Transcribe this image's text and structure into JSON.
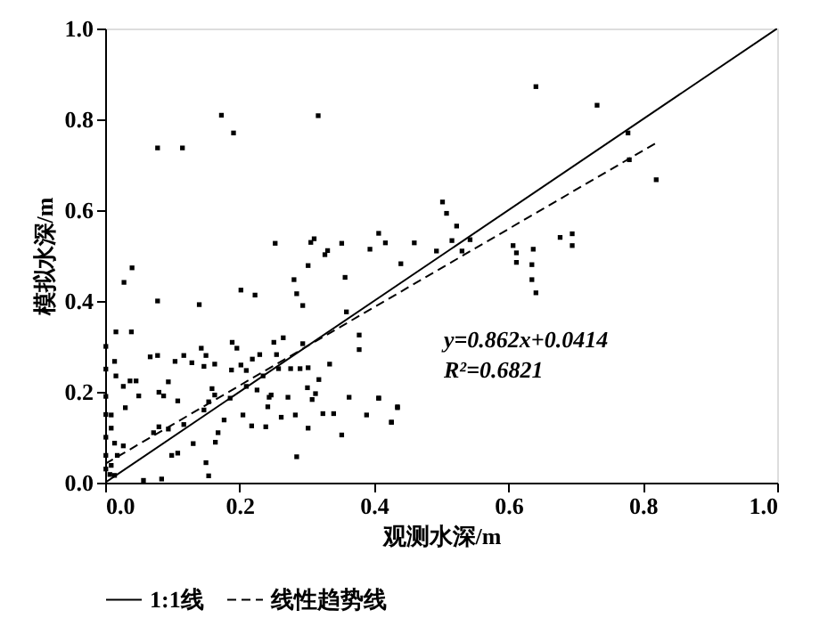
{
  "chart_data": {
    "type": "scatter",
    "xlabel": "观测水深/m",
    "ylabel": "模拟水深/m",
    "xlim": [
      0,
      1
    ],
    "ylim": [
      0,
      1
    ],
    "xticks": [
      {
        "value": 0,
        "label": "0.0"
      },
      0.2,
      0.4,
      0.6,
      0.8,
      {
        "value": 1,
        "label": "1.0"
      }
    ],
    "yticks": [
      {
        "value": 0,
        "label": "0.0"
      },
      0.2,
      0.4,
      0.6,
      0.8,
      {
        "value": 1,
        "label": "1.0"
      }
    ],
    "grid": false,
    "legend": "bottom",
    "annotations": [
      "y=0.862x+0.0414",
      "R²=0.6821"
    ],
    "series": [
      {
        "color": "#000000",
        "marker": "square",
        "x": [
          0.078,
          0.115,
          0.173,
          0.191,
          0.317,
          0.641,
          0.732,
          0.778,
          0.78,
          0.82,
          0.253,
          0.306,
          0.311,
          0.327,
          0.331,
          0.352,
          0.394,
          0.407,
          0.417,
          0.46,
          0.493,
          0.502,
          0.508,
          0.516,
          0.523,
          0.531,
          0.543,
          0.607,
          0.612,
          0.637,
          0.677,
          0.695,
          0.695,
          0.44,
          0.612,
          0.635,
          0.635,
          0.641,
          0.407,
          0.435,
          0.426,
          0.04,
          0.028,
          0.078,
          0.14,
          0.202,
          0.223,
          0.281,
          0.285,
          0.302,
          0.294,
          0.357,
          0.359,
          0.378,
          0.378,
          0.016,
          0.039,
          0.014,
          0.016,
          0.027,
          0.037,
          0.046,
          0.05,
          0.03,
          0.009,
          0.009,
          0.014,
          0.018,
          0.009,
          0.007,
          0.014,
          0.027,
          0.057,
          0.084,
          0.067,
          0.078,
          0.08,
          0.087,
          0.108,
          0.094,
          0.104,
          0.117,
          0.129,
          0.143,
          0.15,
          0.163,
          0.147,
          0.08,
          0.072,
          0.094,
          0.099,
          0.108,
          0.117,
          0.131,
          0.15,
          0.154,
          0.147,
          0.154,
          0.159,
          0.163,
          0.168,
          0.164,
          0.177,
          0.186,
          0.188,
          0.189,
          0.196,
          0.202,
          0.205,
          0.21,
          0.218,
          0.226,
          0.219,
          0.23,
          0.235,
          0.239,
          0.247,
          0.255,
          0.258,
          0.265,
          0.251,
          0.244,
          0.242,
          0.262,
          0.272,
          0.285,
          0.276,
          0.29,
          0.302,
          0.294,
          0.301,
          0.308,
          0.313,
          0.318,
          0.324,
          0.302,
          0.283,
          0.334,
          0.34,
          0.352,
          0.363,
          0.389,
          0.407,
          0.435,
          0.426,
          0.21,
          0.001,
          0.001,
          0.001,
          0.001,
          0.001,
          0.001,
          0.001
        ],
        "values": [
          0.737,
          0.737,
          0.809,
          0.77,
          0.808,
          0.872,
          0.831,
          0.77,
          0.711,
          0.667,
          0.527,
          0.529,
          0.537,
          0.502,
          0.511,
          0.527,
          0.514,
          0.549,
          0.528,
          0.528,
          0.51,
          0.618,
          0.593,
          0.533,
          0.565,
          0.51,
          0.535,
          0.522,
          0.506,
          0.514,
          0.54,
          0.548,
          0.522,
          0.482,
          0.485,
          0.48,
          0.447,
          0.418,
          0.186,
          0.165,
          0.133,
          0.473,
          0.441,
          0.4,
          0.392,
          0.424,
          0.413,
          0.447,
          0.416,
          0.478,
          0.39,
          0.452,
          0.376,
          0.325,
          0.293,
          0.332,
          0.332,
          0.267,
          0.235,
          0.212,
          0.224,
          0.224,
          0.191,
          0.165,
          0.149,
          0.12,
          0.087,
          0.06,
          0.038,
          0.018,
          0.016,
          0.081,
          0.005,
          0.008,
          0.277,
          0.28,
          0.199,
          0.191,
          0.18,
          0.222,
          0.267,
          0.28,
          0.264,
          0.296,
          0.28,
          0.261,
          0.256,
          0.123,
          0.11,
          0.118,
          0.06,
          0.065,
          0.128,
          0.086,
          0.044,
          0.015,
          0.16,
          0.178,
          0.207,
          0.193,
          0.11,
          0.089,
          0.138,
          0.186,
          0.248,
          0.309,
          0.296,
          0.259,
          0.149,
          0.212,
          0.125,
          0.204,
          0.272,
          0.282,
          0.235,
          0.123,
          0.193,
          0.282,
          0.251,
          0.319,
          0.309,
          0.188,
          0.167,
          0.144,
          0.188,
          0.057,
          0.251,
          0.251,
          0.253,
          0.306,
          0.209,
          0.183,
          0.196,
          0.227,
          0.152,
          0.12,
          0.149,
          0.261,
          0.152,
          0.105,
          0.188,
          0.149,
          0.186,
          0.167,
          0.133,
          0.247,
          0.3,
          0.25,
          0.19,
          0.15,
          0.1,
          0.06,
          0.03
        ]
      },
      {
        "type": "line",
        "name": "1:1线",
        "color": "#000000",
        "line_style": "solid",
        "x": [
          0,
          1
        ],
        "values": [
          0,
          1
        ]
      },
      {
        "type": "line",
        "name": "线性趋势线",
        "color": "#000000",
        "line_style": "dashed",
        "x": [
          0,
          0.82
        ],
        "values": [
          0.0414,
          0.748
        ]
      }
    ]
  }
}
